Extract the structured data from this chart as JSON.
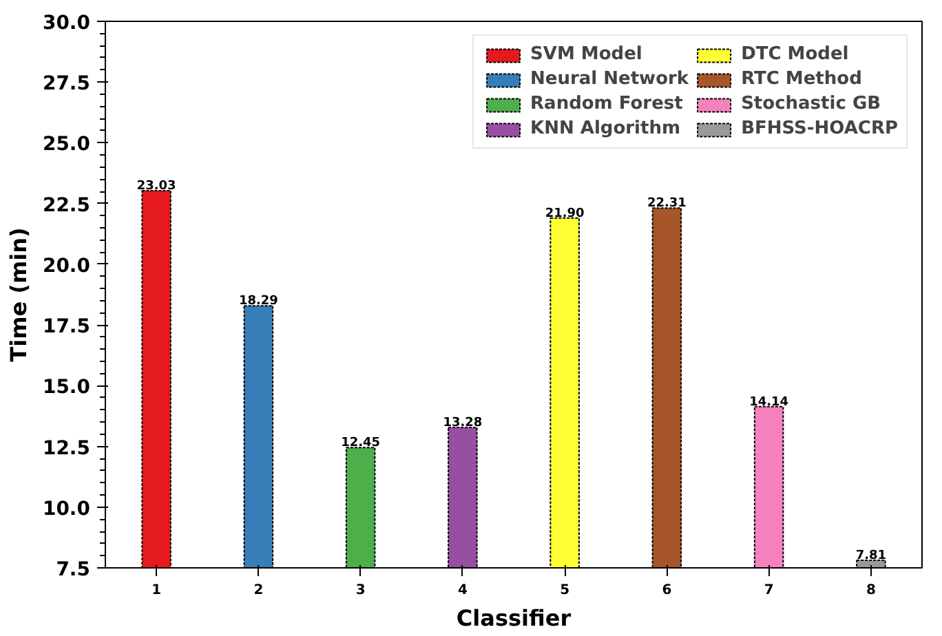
{
  "chart_data": {
    "type": "bar",
    "xlabel": "Classifier",
    "ylabel": "Time (min)",
    "categories": [
      "1",
      "2",
      "3",
      "4",
      "5",
      "6",
      "7",
      "8"
    ],
    "series": [
      {
        "name": "SVM Model",
        "color": "#e41a1c",
        "values": [
          23.03,
          null,
          null,
          null,
          null,
          null,
          null,
          null
        ],
        "value_labels": [
          "23.03",
          null,
          null,
          null,
          null,
          null,
          null,
          null
        ]
      },
      {
        "name": "Neural Network",
        "color": "#377eb8",
        "values": [
          null,
          18.29,
          null,
          null,
          null,
          null,
          null,
          null
        ],
        "value_labels": [
          null,
          "18.29",
          null,
          null,
          null,
          null,
          null,
          null
        ]
      },
      {
        "name": "Random Forest",
        "color": "#4daf4a",
        "values": [
          null,
          null,
          12.45,
          null,
          null,
          null,
          null,
          null
        ],
        "value_labels": [
          null,
          null,
          "12.45",
          null,
          null,
          null,
          null,
          null
        ]
      },
      {
        "name": "KNN Algorithm",
        "color": "#984ea3",
        "values": [
          null,
          null,
          null,
          13.28,
          null,
          null,
          null,
          null
        ],
        "value_labels": [
          null,
          null,
          null,
          "13.28",
          null,
          null,
          null,
          null
        ]
      },
      {
        "name": "DTC Model",
        "color": "#ffff33",
        "values": [
          null,
          null,
          null,
          null,
          21.9,
          null,
          null,
          null
        ],
        "value_labels": [
          null,
          null,
          null,
          null,
          "21.90",
          null,
          null,
          null
        ]
      },
      {
        "name": "RTC Method",
        "color": "#a65628",
        "values": [
          null,
          null,
          null,
          null,
          null,
          22.31,
          null,
          null
        ],
        "value_labels": [
          null,
          null,
          null,
          null,
          null,
          "22.31",
          null,
          null
        ]
      },
      {
        "name": "Stochastic GB",
        "color": "#f781bf",
        "values": [
          null,
          null,
          null,
          null,
          null,
          null,
          14.14,
          null
        ],
        "value_labels": [
          null,
          null,
          null,
          null,
          null,
          null,
          "14.14",
          null
        ]
      },
      {
        "name": "BFHSS-HOACRP",
        "color": "#999999",
        "values": [
          null,
          null,
          null,
          null,
          null,
          null,
          null,
          7.81
        ],
        "value_labels": [
          null,
          null,
          null,
          null,
          null,
          null,
          null,
          "7.81"
        ]
      }
    ],
    "ylim": [
      7.5,
      30.0
    ],
    "yticks": [
      {
        "value": 7.5,
        "label": "7.5"
      },
      {
        "value": 10,
        "label": "10.0"
      },
      {
        "value": 12.5,
        "label": "12.5"
      },
      {
        "value": 15,
        "label": "15.0"
      },
      {
        "value": 17.5,
        "label": "17.5"
      },
      {
        "value": 20,
        "label": "20.0"
      },
      {
        "value": 22.5,
        "label": "22.5"
      },
      {
        "value": 25,
        "label": "25.0"
      },
      {
        "value": 27.5,
        "label": "27.5"
      },
      {
        "value": 30,
        "label": "30.0"
      }
    ],
    "legend": "top right"
  }
}
